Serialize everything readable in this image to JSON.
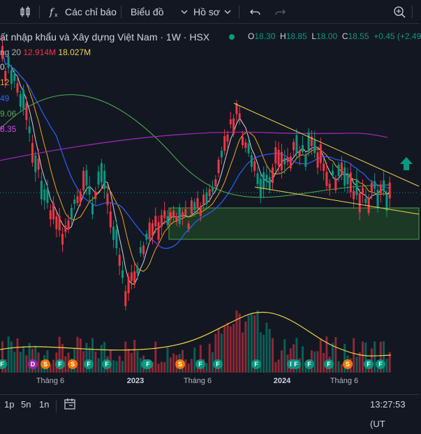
{
  "toolbar": {
    "indicators_label": "Các chỉ báo",
    "chart_type_label": "Biểu đồ",
    "profile_label": "Hồ sơ"
  },
  "legend": {
    "title": "ất nhập khẩu và Xây dựng Việt Nam · 1W · HSX",
    "open_label": "O",
    "open": "18.30",
    "high_label": "H",
    "high": "18.85",
    "low_label": "L",
    "low": "18.00",
    "close_label": "C",
    "close": "18.55",
    "change": "+0.45 (+2.49",
    "volume_prefix": "ng 20",
    "volume_value": "12.914M",
    "volume_ma": "18.027M",
    "ma_values": [
      {
        "text": "0",
        "color": "#d1d4dc"
      },
      {
        "text": "12",
        "color": "#f7a21b"
      },
      {
        "text": "49",
        "color": "#2962ff"
      },
      {
        "text": "9.06",
        "color": "#4caf50"
      },
      {
        "text": "8.35",
        "color": "#e040fb"
      }
    ]
  },
  "x_axis": {
    "labels": [
      {
        "text": "Tháng 6",
        "bold": false
      },
      {
        "text": "2023",
        "bold": true
      },
      {
        "text": "Tháng 6",
        "bold": false
      },
      {
        "text": "2024",
        "bold": true
      },
      {
        "text": "Tháng 6",
        "bold": false
      }
    ]
  },
  "events": [
    "F",
    "D",
    "S",
    "F",
    "S",
    "F",
    "F",
    "F",
    "F",
    "S",
    "F",
    "F",
    "F",
    "F",
    "F",
    "F",
    "F",
    "S",
    "F",
    "F",
    "F",
    "F",
    "F"
  ],
  "bottom": {
    "ranges": [
      "1p",
      "5n",
      "1n"
    ],
    "time": "13:27:53 (UT"
  },
  "colors": {
    "up": "#089981",
    "down": "#f23645",
    "ma_white": "#d1d4dc",
    "ma_orange": "#f7a21b",
    "ma_blue": "#2962ff",
    "ma_green": "#4caf50",
    "ma_purple": "#9c27b0",
    "trend_yellow": "#f0d547",
    "zone_fill": "#1e3d26",
    "zone_border": "#4caf50"
  }
}
